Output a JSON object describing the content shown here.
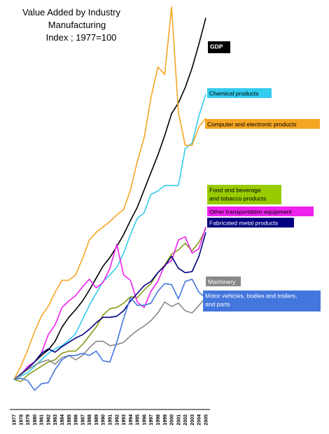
{
  "chart_data": {
    "type": "line",
    "title": [
      "Value Added by Industry",
      "Manufacturing",
      "Index ; 1977=100"
    ],
    "xlabel": "",
    "ylabel": "",
    "grid": false,
    "legend": "labels at line ends, right",
    "x": [
      1977,
      1978,
      1979,
      1980,
      1981,
      1982,
      1983,
      1984,
      1985,
      1986,
      1987,
      1988,
      1989,
      1990,
      1991,
      1992,
      1993,
      1994,
      1995,
      1996,
      1997,
      1998,
      1999,
      2000,
      2001,
      2002,
      2003,
      2004,
      2005
    ],
    "ylim": [
      50,
      600
    ],
    "series": [
      {
        "name": "GDP",
        "color": "#000000",
        "label_bg": "#000000",
        "label_fg": "#ffffff",
        "values": [
          100,
          104,
          110,
          116,
          122,
          127,
          135,
          148,
          157,
          164,
          172,
          182,
          193,
          204,
          212,
          222,
          233,
          246,
          258,
          274,
          290,
          306,
          324,
          344,
          354,
          368,
          386,
          408,
          432
        ]
      },
      {
        "name": "Chemical products",
        "color": "#33ccee",
        "label_bg": "#33ccee",
        "label_fg": "#000000",
        "values": [
          100,
          103,
          106,
          112,
          118,
          124,
          128,
          131,
          136,
          142,
          155,
          168,
          179,
          190,
          196,
          203,
          216,
          233,
          248,
          253,
          270,
          273,
          278,
          278,
          278,
          312,
          317,
          342,
          362
        ]
      },
      {
        "name": "Computer and electronic products",
        "color": "#f5a623",
        "label_bg": "#f5a623",
        "label_fg": "#000000",
        "values": [
          100,
          112,
          127,
          144,
          158,
          167,
          180,
          191,
          191,
          196,
          211,
          228,
          235,
          240,
          245,
          251,
          256,
          274,
          300,
          322,
          359,
          387,
          380,
          442,
          345,
          315,
          315,
          332,
          340
        ]
      },
      {
        "name": "Food and beverage and tobacco products",
        "color": "#8a9a1a",
        "label_bg": "#99cc00",
        "label_fg": "#000000",
        "values": [
          100,
          98,
          104,
          108,
          112,
          116,
          118,
          124,
          126,
          126,
          132,
          140,
          148,
          159,
          165,
          166,
          170,
          176,
          175,
          182,
          188,
          198,
          205,
          215,
          219,
          225,
          218,
          226,
          238
        ]
      },
      {
        "name": "Other transportation equipment",
        "color": "#ee22ee",
        "label_bg": "#ee22ee",
        "label_fg": "#000000",
        "values": [
          100,
          104,
          112,
          116,
          124,
          141,
          150,
          166,
          172,
          177,
          185,
          192,
          184,
          189,
          202,
          224,
          196,
          191,
          171,
          166,
          181,
          190,
          205,
          209,
          228,
          231,
          216,
          220,
          240
        ]
      },
      {
        "name": "Fabricated metal products",
        "color": "#000080",
        "label_bg": "#000080",
        "label_fg": "#ffffff",
        "values": [
          100,
          105,
          110,
          116,
          124,
          128,
          125,
          130,
          134,
          138,
          141,
          146,
          152,
          157,
          157,
          158,
          163,
          172,
          179,
          186,
          190,
          198,
          204,
          213,
          202,
          198,
          199,
          213,
          235
        ]
      },
      {
        "name": "Machinery",
        "color": "#888888",
        "label_bg": "#888888",
        "label_fg": "#ffffff",
        "values": [
          100,
          104,
          109,
          113,
          116,
          118,
          114,
          120,
          122,
          118,
          122,
          129,
          135,
          135,
          131,
          132,
          134,
          140,
          145,
          149,
          154,
          161,
          171,
          167,
          170,
          163,
          161,
          168,
          175
        ]
      },
      {
        "name": "Motor vehicles, bodies and trailers, and parts",
        "color": "#4477dd",
        "label_bg": "#4477dd",
        "label_fg": "#ffffff",
        "values": [
          100,
          101,
          99,
          90,
          96,
          97,
          109,
          118,
          122,
          122,
          124,
          122,
          126,
          117,
          116,
          134,
          156,
          175,
          168,
          168,
          170,
          181,
          188,
          187,
          174,
          190,
          192,
          180,
          175
        ]
      }
    ],
    "x_tick_labels": [
      "1977",
      "1978",
      "1979",
      "1980",
      "1981",
      "1982",
      "1983",
      "1984",
      "1985",
      "1986",
      "1987",
      "1988",
      "1989",
      "1990",
      "1991",
      "1992",
      "1993",
      "1994",
      "1995",
      "1996",
      "1997",
      "1998",
      "1999",
      "2000",
      "2001",
      "2002",
      "2003",
      "2004",
      "2005"
    ]
  },
  "labels": {
    "GDP": "GDP",
    "chemical": "Chemical products",
    "computer": "Computer and electronic products",
    "food_1": "Food and beverage",
    "food_2": "and tobacco products",
    "other_transport": "Other transportation equipment",
    "fabricated_metal": "Fabricated metal products",
    "machinery": "Machinery",
    "motor_1": "Motor vehicles, bodies and trailers,",
    "motor_2": "and parts"
  }
}
